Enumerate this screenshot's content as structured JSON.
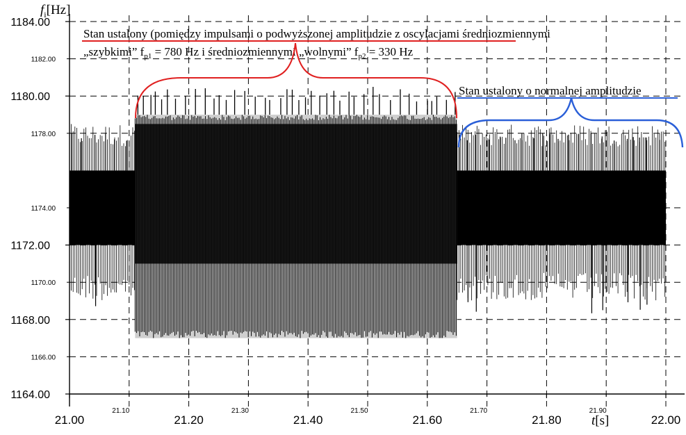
{
  "chart_data": {
    "type": "line",
    "title": "",
    "ylabel": {
      "symbol": "f",
      "subscript": "i",
      "unit": "[Hz]"
    },
    "xlabel": {
      "symbol": "t",
      "unit": "[s]"
    },
    "xlim": [
      21.0,
      22.0
    ],
    "ylim": [
      1164.0,
      1184.0
    ],
    "x_ticks_major": [
      "21.00",
      "21.20",
      "21.40",
      "21.60",
      "21.80",
      "22.00"
    ],
    "x_ticks_minor": [
      "21.10",
      "21.30",
      "21.50",
      "21.70",
      "21.90"
    ],
    "y_ticks_major": [
      "1164.00",
      "1168.00",
      "1172.00",
      "1180.00",
      "1184.00"
    ],
    "y_ticks_minor": [
      "1166.00",
      "1170.00",
      "1174.00",
      "1178.00",
      "1182.00"
    ],
    "grid": true,
    "segments": [
      {
        "t_start": 21.0,
        "t_end": 21.11,
        "regime": "normal",
        "band": [
          1172.0,
          1176.0
        ],
        "spikes_min": 1168.0,
        "spikes_max": 1178.0
      },
      {
        "t_start": 21.11,
        "t_end": 21.65,
        "regime": "elevated",
        "inner_band": [
          1171.0,
          1178.5
        ],
        "envelope": [
          1167.0,
          1179.0
        ],
        "spikes_min": 1167.0,
        "spikes_max": 1180.5
      },
      {
        "t_start": 21.65,
        "t_end": 22.0,
        "regime": "normal",
        "band": [
          1172.0,
          1176.0
        ],
        "spikes_min": 1168.0,
        "spikes_max": 1178.0
      }
    ],
    "annotations": {
      "red": {
        "line1": "Stan ustalony (pomiędzy impulsami o podwyższonej amplitudzie z oscylacjami średniozmiennymi",
        "line2_a": "„szybkimi” f",
        "line2_sub1": "p1",
        "line2_b": " = 780 Hz i średniozmiennymi „wolnymi” f",
        "line2_sub2": "p2",
        "line2_c": " = 330 Hz",
        "color": "#e02020"
      },
      "blue": {
        "text": "Stan ustalony o normalnej amplitudzie",
        "color": "#2a5fd8"
      }
    }
  }
}
